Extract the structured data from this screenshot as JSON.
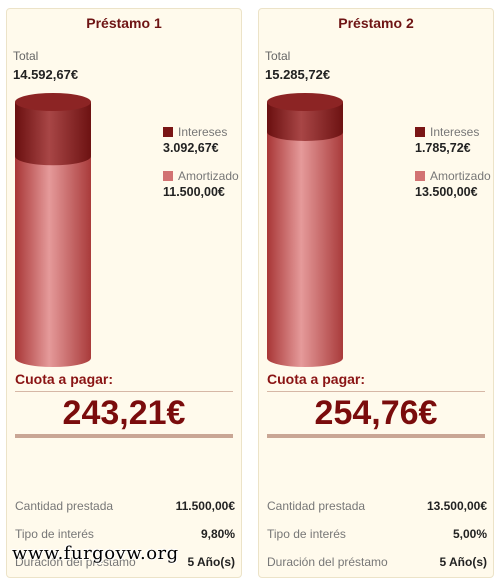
{
  "loans": [
    {
      "title": "Préstamo 1",
      "total_label": "Total",
      "total_value": "14.592,67€",
      "legend": {
        "intereses_label": "Intereses",
        "intereses_value": "3.092,67€",
        "amortizado_label": "Amortizado",
        "amortizado_value": "11.500,00€"
      },
      "interest_fraction": 0.212,
      "cuota_label": "Cuota a pagar:",
      "cuota_value": "243,21€",
      "details": [
        {
          "label": "Cantidad prestada",
          "value": "11.500,00€"
        },
        {
          "label": "Tipo de interés",
          "value": "9,80%"
        },
        {
          "label": "Duración del préstamo",
          "value": "5 Año(s)"
        }
      ]
    },
    {
      "title": "Préstamo 2",
      "total_label": "Total",
      "total_value": "15.285,72€",
      "legend": {
        "intereses_label": "Intereses",
        "intereses_value": "1.785,72€",
        "amortizado_label": "Amortizado",
        "amortizado_value": "13.500,00€"
      },
      "interest_fraction": 0.117,
      "cuota_label": "Cuota a pagar:",
      "cuota_value": "254,76€",
      "details": [
        {
          "label": "Cantidad prestada",
          "value": "13.500,00€"
        },
        {
          "label": "Tipo de interés",
          "value": "5,00%"
        },
        {
          "label": "Duración del préstamo",
          "value": "5 Año(s)"
        }
      ]
    }
  ],
  "colors": {
    "intereses": "#7a1515",
    "amortizado": "#d27272"
  },
  "watermark": "www.furgovw.org"
}
